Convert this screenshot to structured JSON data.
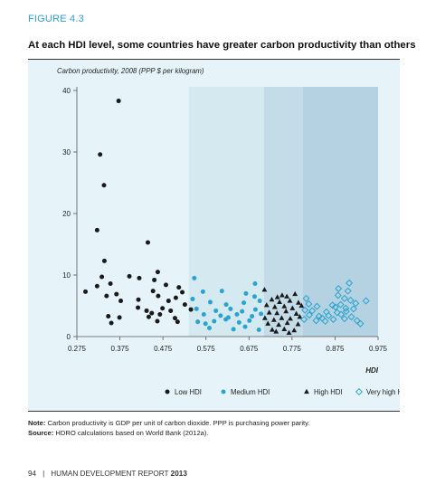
{
  "figure": {
    "label": "FIGURE 4.3",
    "title": "At each HDI level, some countries have greater carbon productivity than others"
  },
  "note": {
    "label": "Note:",
    "text": "Carbon productivity is GDP per unit of carbon dioxide. PPP is purchasing power parity.",
    "source_label": "Source:",
    "source_text": "HDRO calculations based on World Bank (2012a)."
  },
  "footer": {
    "page": "94",
    "separator": "|",
    "report": "HUMAN DEVELOPMENT REPORT",
    "year": "2013"
  },
  "colors": {
    "low": "#1a1a1a",
    "medium": "#2aa3cf",
    "high": "#1a1a1a",
    "very_high": "#2aa3cf",
    "band_low": "#e6f4fa",
    "band_medium": "#d5e9f1",
    "band_high": "#c3dce8",
    "band_very_high": "#b4d2e1"
  },
  "chart_data": {
    "type": "scatter",
    "ylabel": "Carbon productivity, 2008 (PPP $ per kilogram)",
    "xlabel": "HDI",
    "xlim": [
      0.275,
      0.975
    ],
    "ylim": [
      0,
      40
    ],
    "x_ticks": [
      "0.275",
      "0.375",
      "0.475",
      "0.575",
      "0.675",
      "0.775",
      "0.875",
      "0.975"
    ],
    "y_ticks": [
      "0",
      "10",
      "20",
      "30",
      "40"
    ],
    "grid": false,
    "legend_position": "bottom",
    "bands": [
      {
        "group": "low",
        "from": 0.275,
        "to": 0.535
      },
      {
        "group": "medium",
        "from": 0.535,
        "to": 0.71
      },
      {
        "group": "high",
        "from": 0.71,
        "to": 0.8
      },
      {
        "group": "very_high",
        "from": 0.8,
        "to": 0.975
      }
    ],
    "series": [
      {
        "name": "Low HDI",
        "marker": "dot",
        "points": [
          [
            0.372,
            38.3
          ],
          [
            0.329,
            29.6
          ],
          [
            0.338,
            24.6
          ],
          [
            0.322,
            17.3
          ],
          [
            0.44,
            15.3
          ],
          [
            0.339,
            12.3
          ],
          [
            0.463,
            10.5
          ],
          [
            0.333,
            9.7
          ],
          [
            0.397,
            9.8
          ],
          [
            0.42,
            9.5
          ],
          [
            0.455,
            9.2
          ],
          [
            0.353,
            8.6
          ],
          [
            0.322,
            8.2
          ],
          [
            0.482,
            8.4
          ],
          [
            0.512,
            8.0
          ],
          [
            0.295,
            7.3
          ],
          [
            0.344,
            6.6
          ],
          [
            0.367,
            6.9
          ],
          [
            0.452,
            7.4
          ],
          [
            0.464,
            6.6
          ],
          [
            0.52,
            7.2
          ],
          [
            0.377,
            5.8
          ],
          [
            0.418,
            6.0
          ],
          [
            0.488,
            5.8
          ],
          [
            0.505,
            6.3
          ],
          [
            0.417,
            4.7
          ],
          [
            0.437,
            4.2
          ],
          [
            0.474,
            4.6
          ],
          [
            0.493,
            4.2
          ],
          [
            0.54,
            4.4
          ],
          [
            0.348,
            3.3
          ],
          [
            0.374,
            3.1
          ],
          [
            0.442,
            3.2
          ],
          [
            0.468,
            3.6
          ],
          [
            0.503,
            3.0
          ],
          [
            0.355,
            2.2
          ],
          [
            0.462,
            2.5
          ],
          [
            0.509,
            2.4
          ],
          [
            0.526,
            5.2
          ],
          [
            0.449,
            3.8
          ]
        ]
      },
      {
        "name": "Medium HDI",
        "marker": "dot",
        "points": [
          [
            0.548,
            9.5
          ],
          [
            0.568,
            7.3
          ],
          [
            0.612,
            7.4
          ],
          [
            0.689,
            8.6
          ],
          [
            0.668,
            7.0
          ],
          [
            0.688,
            6.5
          ],
          [
            0.544,
            6.1
          ],
          [
            0.585,
            5.6
          ],
          [
            0.622,
            5.2
          ],
          [
            0.663,
            5.5
          ],
          [
            0.7,
            5.8
          ],
          [
            0.553,
            4.5
          ],
          [
            0.598,
            4.2
          ],
          [
            0.632,
            4.5
          ],
          [
            0.659,
            4.1
          ],
          [
            0.69,
            4.4
          ],
          [
            0.57,
            3.6
          ],
          [
            0.609,
            3.4
          ],
          [
            0.647,
            3.6
          ],
          [
            0.682,
            3.3
          ],
          [
            0.703,
            3.7
          ],
          [
            0.556,
            2.4
          ],
          [
            0.594,
            2.5
          ],
          [
            0.621,
            2.8
          ],
          [
            0.652,
            2.3
          ],
          [
            0.676,
            2.6
          ],
          [
            0.583,
            1.4
          ],
          [
            0.639,
            1.2
          ],
          [
            0.666,
            1.6
          ],
          [
            0.698,
            1.1
          ],
          [
            0.627,
            3.1
          ],
          [
            0.574,
            2.1
          ]
        ]
      },
      {
        "name": "High HDI",
        "marker": "triangle",
        "points": [
          [
            0.711,
            7.6
          ],
          [
            0.741,
            6.4
          ],
          [
            0.752,
            6.7
          ],
          [
            0.763,
            6.5
          ],
          [
            0.782,
            6.9
          ],
          [
            0.728,
            6.0
          ],
          [
            0.746,
            5.6
          ],
          [
            0.77,
            5.8
          ],
          [
            0.79,
            5.5
          ],
          [
            0.716,
            5.1
          ],
          [
            0.735,
            4.8
          ],
          [
            0.757,
            4.9
          ],
          [
            0.776,
            4.6
          ],
          [
            0.797,
            5.0
          ],
          [
            0.722,
            3.9
          ],
          [
            0.74,
            3.8
          ],
          [
            0.761,
            4.1
          ],
          [
            0.785,
            3.7
          ],
          [
            0.712,
            3.0
          ],
          [
            0.733,
            2.7
          ],
          [
            0.751,
            3.0
          ],
          [
            0.771,
            2.9
          ],
          [
            0.793,
            3.2
          ],
          [
            0.719,
            2.1
          ],
          [
            0.744,
            1.9
          ],
          [
            0.764,
            2.2
          ],
          [
            0.789,
            2.0
          ],
          [
            0.729,
            1.1
          ],
          [
            0.757,
            1.2
          ],
          [
            0.78,
            1.0
          ],
          [
            0.738,
            0.8
          ],
          [
            0.768,
            0.6
          ]
        ]
      },
      {
        "name": "Very high HDI",
        "marker": "diamond",
        "points": [
          [
            0.908,
            8.7
          ],
          [
            0.905,
            7.4
          ],
          [
            0.883,
            7.8
          ],
          [
            0.882,
            6.7
          ],
          [
            0.808,
            6.2
          ],
          [
            0.897,
            6.2
          ],
          [
            0.911,
            5.9
          ],
          [
            0.947,
            5.8
          ],
          [
            0.814,
            5.3
          ],
          [
            0.869,
            5.1
          ],
          [
            0.888,
            5.2
          ],
          [
            0.923,
            5.4
          ],
          [
            0.833,
            4.9
          ],
          [
            0.876,
            4.8
          ],
          [
            0.9,
            4.6
          ],
          [
            0.918,
            4.5
          ],
          [
            0.805,
            4.3
          ],
          [
            0.822,
            4.2
          ],
          [
            0.855,
            4.0
          ],
          [
            0.88,
            3.9
          ],
          [
            0.901,
            4.1
          ],
          [
            0.815,
            3.5
          ],
          [
            0.838,
            3.3
          ],
          [
            0.86,
            3.4
          ],
          [
            0.889,
            3.6
          ],
          [
            0.913,
            3.2
          ],
          [
            0.803,
            2.8
          ],
          [
            0.831,
            2.6
          ],
          [
            0.852,
            2.5
          ],
          [
            0.871,
            2.8
          ],
          [
            0.926,
            2.6
          ],
          [
            0.934,
            2.1
          ],
          [
            0.845,
            3.0
          ],
          [
            0.897,
            2.9
          ]
        ]
      }
    ]
  }
}
